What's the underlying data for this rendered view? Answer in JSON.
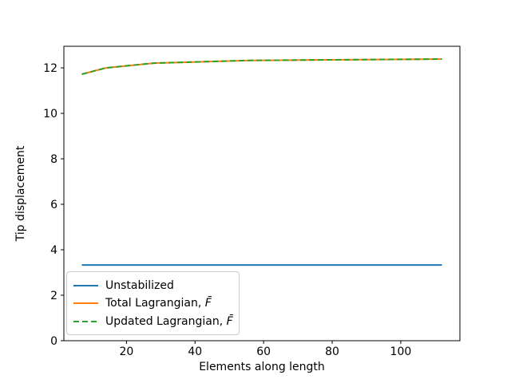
{
  "figure": {
    "background": "#ffffff",
    "frame_color": "#000000",
    "legend_border_color": "#cccccc"
  },
  "chart_data": {
    "type": "line",
    "title": "",
    "xlabel": "Elements along length",
    "ylabel": "Tip displacement",
    "xlim": [
      1.75,
      117.25
    ],
    "ylim": [
      0,
      12.95
    ],
    "xticks": [
      20,
      40,
      60,
      80,
      100
    ],
    "yticks": [
      0,
      2,
      4,
      6,
      8,
      10,
      12
    ],
    "grid": false,
    "legend_position": "lower left",
    "x": [
      7,
      14,
      28,
      56,
      112
    ],
    "series": [
      {
        "name": "Unstabilized",
        "color": "#1f77b4",
        "style": "solid",
        "values": [
          3.33,
          3.33,
          3.33,
          3.33,
          3.33
        ]
      },
      {
        "name": "Total Lagrangian, F̄",
        "color": "#ff7f0e",
        "style": "solid",
        "values": [
          11.72,
          12.0,
          12.21,
          12.33,
          12.39
        ]
      },
      {
        "name": "Updated Lagrangian, F̄",
        "color": "#2ca02c",
        "style": "dashed",
        "values": [
          11.72,
          12.0,
          12.21,
          12.33,
          12.39
        ]
      }
    ]
  },
  "legend": {
    "items": [
      {
        "label": "Unstabilized",
        "math": ""
      },
      {
        "label": "Total Lagrangian, ",
        "math": "F̄"
      },
      {
        "label": "Updated Lagrangian, ",
        "math": "F̄"
      }
    ]
  }
}
